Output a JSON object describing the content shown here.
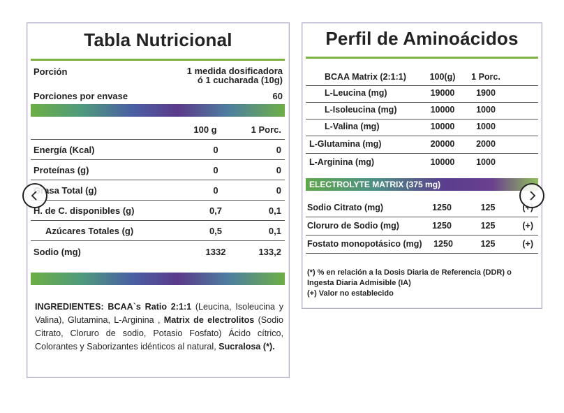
{
  "nutrition_table": {
    "title": "Tabla Nutricional",
    "serving_label": "Porción",
    "serving_value_line1": "1 medida dosificadora",
    "serving_value_line2": "ó 1 cucharada (10g)",
    "servings_label": "Porciones por envase",
    "servings_value": "60",
    "col_100g": "100 g",
    "col_portion": "1 Porc.",
    "rows": [
      {
        "label": "Energía (Kcal)",
        "v100": "0",
        "vport": "0"
      },
      {
        "label": "Proteínas (g)",
        "v100": "0",
        "vport": "0"
      },
      {
        "label": "Grasa Total (g)",
        "v100": "0",
        "vport": "0"
      },
      {
        "label": "H. de C. disponibles (g)",
        "v100": "0,7",
        "vport": "0,1"
      },
      {
        "label": "Azúcares Totales (g)",
        "v100": "0,5",
        "vport": "0,1"
      },
      {
        "label": "Sodio (mg)",
        "v100": "1332",
        "vport": "133,2"
      }
    ],
    "ingredients": {
      "label": "INGREDIENTES:",
      "bcaa": "BCAA`s Ratio 2:1:1",
      "text1": "(Leucina, Isoleucina y Valina), Glutamina, L-Arginina ,",
      "matrix": "Matrix de electrolitos",
      "text2": "(Sodio Citrato, Cloruro de sodio, Potasio Fosfato) Ácido cítrico, Colorantes y Saborizantes idénticos al natural,",
      "sucralosa": "Sucralosa (*)."
    }
  },
  "amino_profile": {
    "title": "Perfil de Aminoácidos",
    "header": {
      "label": "BCAA Matrix (2:1:1)",
      "v100": "100(g)",
      "vport": "1 Porc."
    },
    "rows": [
      {
        "label": "L-Leucina (mg)",
        "v100": "19000",
        "vport": "1900"
      },
      {
        "label": "L-Isoleucina (mg)",
        "v100": "10000",
        "vport": "1000"
      },
      {
        "label": "L-Valina (mg)",
        "v100": "10000",
        "vport": "1000"
      },
      {
        "label": "L-Glutamina (mg)",
        "v100": "20000",
        "vport": "2000"
      },
      {
        "label": "L-Arginina (mg)",
        "v100": "10000",
        "vport": "1000"
      }
    ],
    "electrolyte_label": "ELECTROLYTE MATRIX (375 mg)",
    "electrolyte_rows": [
      {
        "label": "Sodio Citrato (mg)",
        "v100": "1250",
        "vport": "125",
        "ddr": "(+)"
      },
      {
        "label": "Cloruro de Sodio (mg)",
        "v100": "1250",
        "vport": "125",
        "ddr": "(+)"
      },
      {
        "label": "Fostato monopotásico (mg)",
        "v100": "1250",
        "vport": "125",
        "ddr": "(+)"
      }
    ],
    "footnote1": "(*) % en relación a la Dosis Diaria de Referencia (DDR) o",
    "footnote2": "Ingesta Diaria Admisible (IA)",
    "footnote3": "(+) Valor no establecido"
  },
  "carousel": {
    "prev_icon": "chevron-left-icon",
    "next_icon": "chevron-right-icon"
  }
}
